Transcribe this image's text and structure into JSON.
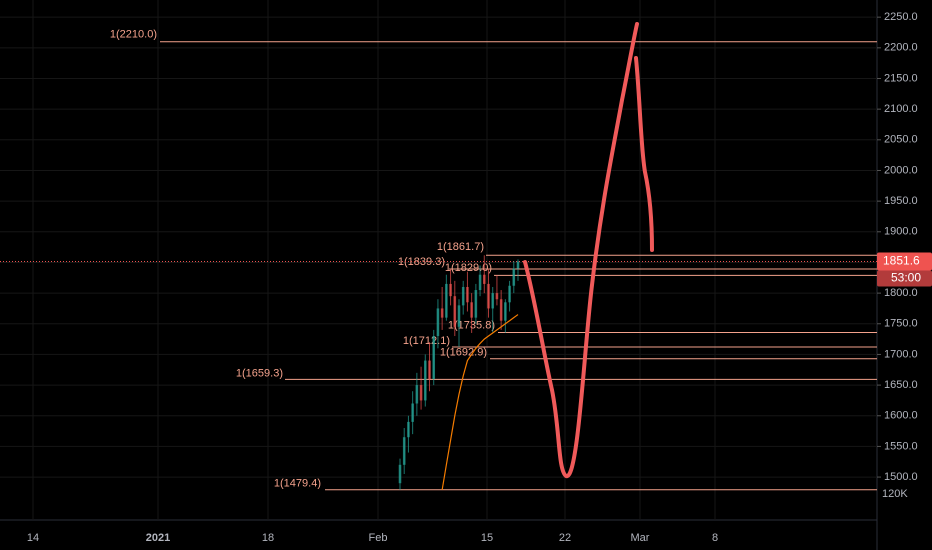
{
  "chart_data": {
    "type": "candlestick",
    "categories": [
      null,
      null,
      null,
      null,
      null,
      null,
      null,
      null,
      null,
      null,
      null,
      null,
      null,
      null,
      null,
      null,
      null,
      null,
      null,
      null,
      null,
      null,
      null,
      null,
      null,
      null,
      null,
      null,
      null
    ],
    "open": [
      1490,
      1520,
      1565,
      1590,
      1620,
      1650,
      1625,
      1690,
      1660,
      1730,
      1775,
      1760,
      1815,
      1795,
      1745,
      1780,
      1810,
      1785,
      1760,
      1805,
      1830,
      1815,
      1775,
      1800,
      1790,
      1755,
      1785,
      1812,
      1840
    ],
    "high": [
      1530,
      1580,
      1600,
      1640,
      1670,
      1680,
      1700,
      1720,
      1740,
      1790,
      1810,
      1830,
      1839,
      1820,
      1790,
      1820,
      1835,
      1800,
      1815,
      1845,
      1861.7,
      1840,
      1810,
      1829,
      1805,
      1790,
      1820,
      1852,
      1855
    ],
    "low": [
      1479,
      1505,
      1540,
      1570,
      1600,
      1610,
      1615,
      1640,
      1650,
      1710,
      1740,
      1755,
      1780,
      1730,
      1712,
      1765,
      1770,
      1735,
      1750,
      1795,
      1800,
      1760,
      1736,
      1780,
      1740,
      1735,
      1770,
      1800,
      1820
    ],
    "close": [
      1520,
      1565,
      1590,
      1620,
      1650,
      1625,
      1690,
      1660,
      1730,
      1775,
      1760,
      1815,
      1795,
      1745,
      1780,
      1810,
      1785,
      1760,
      1805,
      1830,
      1815,
      1775,
      1800,
      1790,
      1755,
      1785,
      1812,
      1840,
      1851.6
    ],
    "up_color": "#26a69a",
    "down_color": "#ef5350",
    "moving_average": {
      "color": "#f57c00",
      "values": [
        null,
        null,
        null,
        null,
        null,
        null,
        null,
        null,
        null,
        null,
        1479,
        1520,
        1560,
        1600,
        1635,
        1665,
        1690,
        1700,
        1710,
        1718,
        1725,
        1730,
        1735,
        1740,
        1745,
        1750,
        1755,
        1760,
        1765
      ]
    },
    "ylim": [
      1430,
      2278
    ],
    "yticks": [
      {
        "value": 1500,
        "label": "1500.0"
      },
      {
        "value": 1550,
        "label": "1550.0"
      },
      {
        "value": 1600,
        "label": "1600.0"
      },
      {
        "value": 1650,
        "label": "1650.0"
      },
      {
        "value": 1700,
        "label": "1700.0"
      },
      {
        "value": 1750,
        "label": "1750.0"
      },
      {
        "value": 1800,
        "label": "1800.0"
      },
      {
        "value": 1850,
        "label": "1850.0"
      },
      {
        "value": 1900,
        "label": "1900.0"
      },
      {
        "value": 1950,
        "label": "1950.0"
      },
      {
        "value": 2000,
        "label": "2000.0"
      },
      {
        "value": 2050,
        "label": "2050.0"
      },
      {
        "value": 2100,
        "label": "2100.0"
      },
      {
        "value": 2150,
        "label": "2150.0"
      },
      {
        "value": 2200,
        "label": "2200.0"
      },
      {
        "value": 2250,
        "label": "2250.0"
      }
    ],
    "xticks": [
      "14",
      "2021",
      "18",
      "Feb",
      "15",
      "22",
      "Mar",
      "8"
    ],
    "volume_label": "120K",
    "levels": [
      {
        "value": 2210,
        "label": "1(2210.0)"
      },
      {
        "value": 1861.7,
        "label": "1(1861.7)"
      },
      {
        "value": 1839.3,
        "label": "1(1839.3)"
      },
      {
        "value": 1829,
        "label": "1(1829.0)"
      },
      {
        "value": 1735.8,
        "label": "1(1735.8)"
      },
      {
        "value": 1712.1,
        "label": "1(1712.1)"
      },
      {
        "value": 1692.9,
        "label": "1(1692.9)"
      },
      {
        "value": 1659.3,
        "label": "1(1659.3)"
      },
      {
        "value": 1479.4,
        "label": "1(1479.4)"
      }
    ],
    "level_color": "#f4a28c",
    "last_price": {
      "value": 1851.6,
      "label": "1851.6"
    },
    "countdown": "53:00",
    "grid": true
  }
}
